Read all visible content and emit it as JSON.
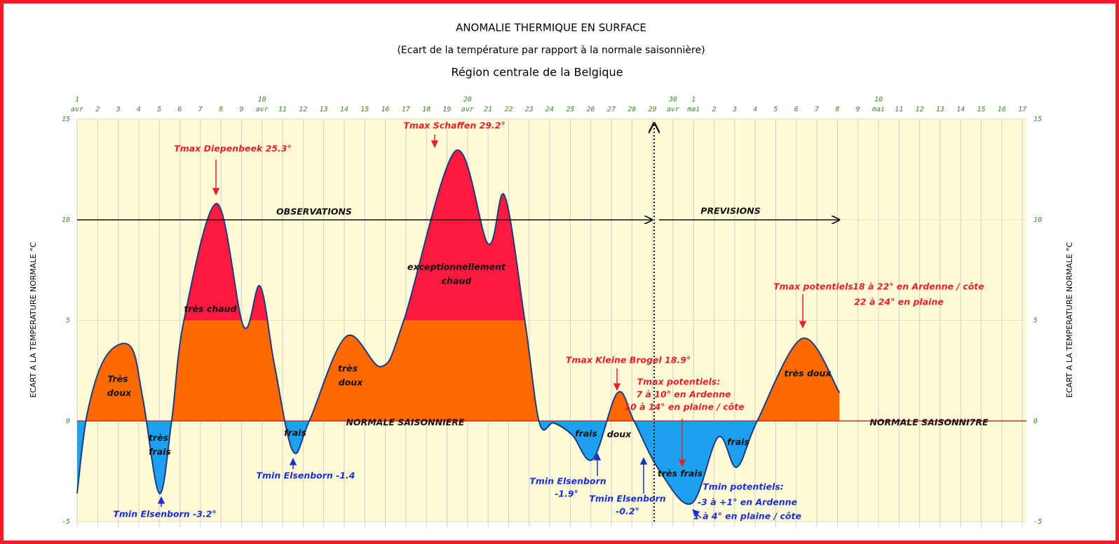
{
  "chart_data": {
    "type": "area",
    "title": "ANOMALIE THERMIQUE EN SURFACE",
    "subtitle": "(Ecart de la température par rapport à la normale saisonnière)",
    "region": "Région centrale de la Belgique",
    "y_label": "ECART A LA TEMPERATURE NORMALE °C",
    "x": [
      1,
      1.5,
      2.4,
      3.6,
      4.2,
      5,
      5.6,
      6.2,
      7.8,
      9.1,
      9.9,
      10.6,
      11.5,
      12.3,
      14.1,
      15.8,
      16.9,
      19.4,
      21,
      21.8,
      22.8,
      23.5,
      24.2,
      25.1,
      26.1,
      27.3,
      28.1,
      29.3,
      30.9,
      32.2,
      33.1,
      34.1,
      36.3,
      38.1
    ],
    "values": [
      -3.6,
      0.4,
      3.2,
      3.7,
      1.1,
      -3.6,
      0,
      5,
      10.8,
      4.7,
      6.7,
      2.8,
      -1.5,
      0,
      4.2,
      2.7,
      5,
      13.4,
      8.8,
      11.2,
      4.9,
      -0.1,
      -0.1,
      -0.7,
      -1.9,
      1.4,
      0,
      -2.4,
      -4.1,
      -0.8,
      -2.3,
      0,
      4.1,
      1.4
    ],
    "line_color": "#1f3a7a",
    "fill_thresholds": [
      0,
      5
    ],
    "fill_colors": [
      "#1ea0f0",
      "#ff6a00",
      "#ff1a40"
    ],
    "baseline_color": "#e8202a",
    "xlim": [
      1,
      47.2
    ],
    "xticks": [
      {
        "value": 1,
        "label": "1 avr"
      },
      2,
      3,
      4,
      5,
      6,
      7,
      8,
      9,
      {
        "value": 10,
        "label": "10 avr"
      },
      11,
      12,
      13,
      14,
      15,
      16,
      17,
      18,
      19,
      {
        "value": 20,
        "label": "20 avr"
      },
      21,
      22,
      23,
      24,
      25,
      26,
      27,
      28,
      29,
      {
        "value": 30,
        "label": "30 avr"
      },
      {
        "value": 31,
        "label": "1 mai"
      },
      {
        "value": 32,
        "label": "2"
      },
      {
        "value": 33,
        "label": "3"
      },
      {
        "value": 34,
        "label": "4"
      },
      {
        "value": 35,
        "label": "5"
      },
      {
        "value": 36,
        "label": "6"
      },
      {
        "value": 37,
        "label": "7"
      },
      {
        "value": 38,
        "label": "8"
      },
      {
        "value": 39,
        "label": "9"
      },
      {
        "value": 40,
        "label": "10 mai"
      },
      {
        "value": 41,
        "label": "11"
      },
      {
        "value": 42,
        "label": "12"
      },
      {
        "value": 43,
        "label": "13"
      },
      {
        "value": 44,
        "label": "14"
      },
      {
        "value": 45,
        "label": "15"
      },
      {
        "value": 46,
        "label": "16"
      },
      {
        "value": 47,
        "label": "17"
      }
    ],
    "ylim": [
      -5,
      15
    ],
    "yticks": [
      -5,
      0,
      5,
      10,
      15
    ],
    "annotations": [
      {
        "text": "Tmax Diepenbeek 25.3°",
        "color": "#e8202a"
      },
      {
        "text": "Tmax Schaffen 29.2°",
        "color": "#e8202a"
      },
      {
        "text": "OBSERVATIONS",
        "color": "#111"
      },
      {
        "text": "PREVISIONS",
        "color": "#111"
      },
      {
        "text": "exceptionnellement",
        "color": "#111"
      },
      {
        "text": "chaud",
        "color": "#111"
      },
      {
        "text": "très chaud",
        "color": "#111"
      },
      {
        "text": "Très",
        "color": "#111"
      },
      {
        "text": "doux",
        "color": "#111"
      },
      {
        "text": "très",
        "color": "#111"
      },
      {
        "text": "doux",
        "color": "#111"
      },
      {
        "text": "très",
        "color": "#111"
      },
      {
        "text": "frais",
        "color": "#111"
      },
      {
        "text": "frais",
        "color": "#111"
      },
      {
        "text": "NORMALE SAISONNIERE",
        "color": "#111"
      },
      {
        "text": "Tmin Elsenborn -3.2°",
        "color": "#1a2fd0"
      },
      {
        "text": "Tmin Elsenborn -1.4",
        "color": "#1a2fd0"
      },
      {
        "text": "Tmax Kleine Brogel 18.9°",
        "color": "#e8202a"
      },
      {
        "text": "Tmax potentiels:",
        "color": "#e8202a"
      },
      {
        "text": "7 à 10° en Ardenne",
        "color": "#e8202a"
      },
      {
        "text": "10 à 14° en plaine / côte",
        "color": "#e8202a"
      },
      {
        "text": "frais",
        "color": "#111"
      },
      {
        "text": "doux",
        "color": "#111"
      },
      {
        "text": "Tmin Elsenborn",
        "color": "#1a2fd0"
      },
      {
        "text": "-1.9°",
        "color": "#1a2fd0"
      },
      {
        "text": "Tmin Elsenborn",
        "color": "#1a2fd0"
      },
      {
        "text": "-0.2°",
        "color": "#1a2fd0"
      },
      {
        "text": "très frais",
        "color": "#111"
      },
      {
        "text": "frais",
        "color": "#111"
      },
      {
        "text": "Tmin potentiels:",
        "color": "#1a2fd0"
      },
      {
        "text": "-3 à +1° en Ardenne",
        "color": "#1a2fd0"
      },
      {
        "text": "1 à 4° en plaine / côte",
        "color": "#1a2fd0"
      },
      {
        "text": "Tmax potentiels",
        "color": "#e8202a"
      },
      {
        "text": "18 à 22° en Ardenne / côte",
        "color": "#e8202a"
      },
      {
        "text": "22 à 24° en plaine",
        "color": "#e8202a"
      },
      {
        "text": "très doux",
        "color": "#111"
      },
      {
        "text": "NORMALE SAISONNI7RE",
        "color": "#111"
      }
    ]
  }
}
